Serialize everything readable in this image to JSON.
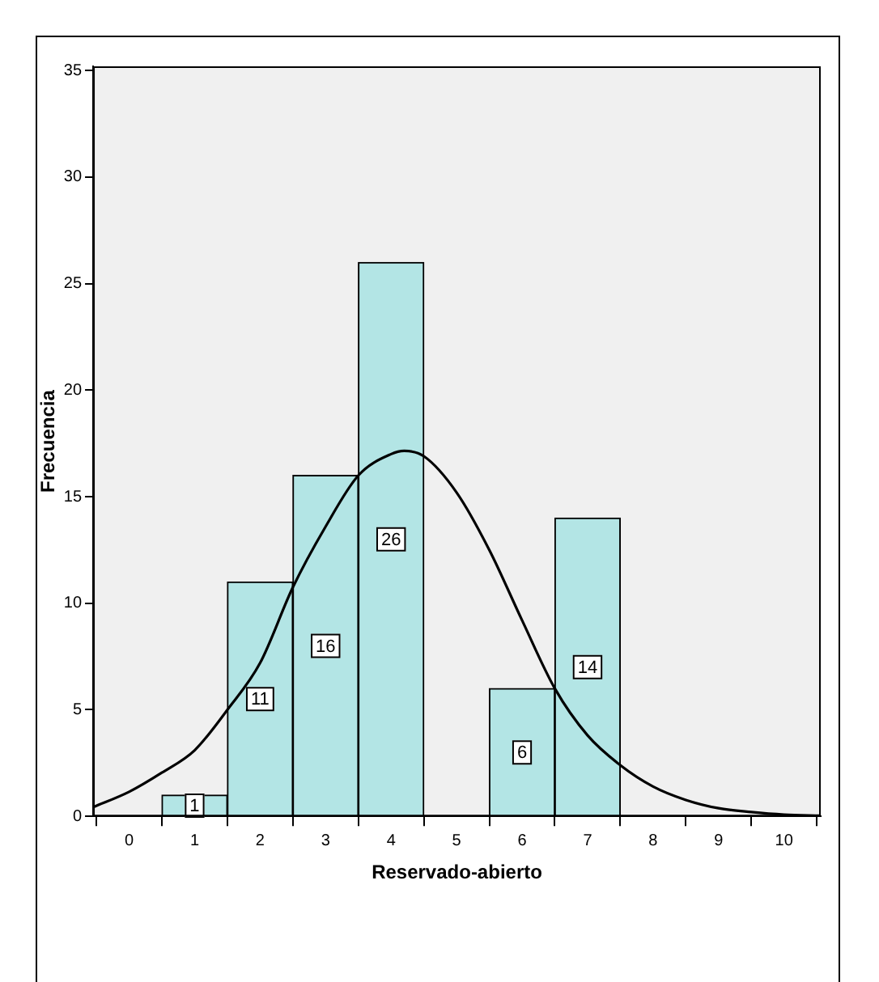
{
  "chart_data": {
    "type": "histogram",
    "xlabel": "Reservado-abierto",
    "ylabel": "Frecuencia",
    "bins": [
      0.5,
      1.5,
      2.5,
      3.5,
      4.5,
      5.5,
      6.5,
      7.5
    ],
    "values": [
      1,
      11,
      16,
      26,
      0,
      6,
      14
    ],
    "value_labels": [
      "1",
      "11",
      "16",
      "26",
      null,
      "6",
      "14"
    ],
    "color": "#b3e5e5",
    "xlim": [
      -0.55,
      10.56
    ],
    "xticks": [
      0,
      1,
      2,
      3,
      4,
      5,
      6,
      7,
      8,
      9,
      10
    ],
    "ylim": [
      0,
      35.2
    ],
    "yticks": [
      0,
      5,
      10,
      15,
      20,
      25,
      30,
      35
    ],
    "grid": false,
    "legend": false,
    "series": [
      {
        "type": "line",
        "color": "#000000",
        "x": [
          -0.55,
          0,
          0.5,
          1,
          1.5,
          2,
          2.5,
          3,
          3.5,
          4,
          4.2,
          4.5,
          5,
          5.5,
          6,
          6.5,
          7,
          7.5,
          8,
          8.5,
          9,
          9.5,
          10,
          10.56
        ],
        "values": [
          0.43,
          1.15,
          2.05,
          3.1,
          5.0,
          7.2,
          10.75,
          13.6,
          16.0,
          17.0,
          17.15,
          16.9,
          15.2,
          12.5,
          9.2,
          6.0,
          3.8,
          2.4,
          1.4,
          0.77,
          0.38,
          0.2,
          0.08,
          0.03
        ]
      }
    ]
  }
}
